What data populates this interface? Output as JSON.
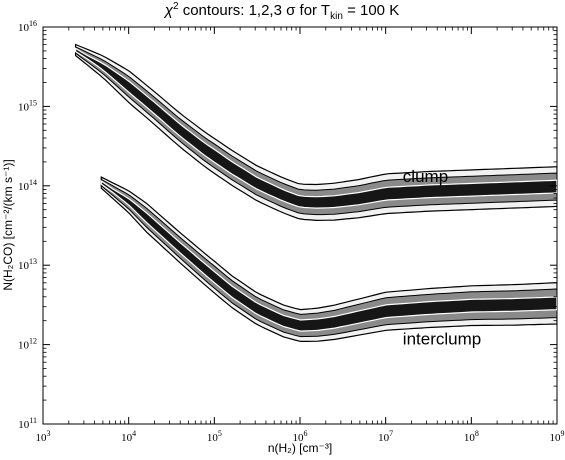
{
  "chart_data": {
    "type": "contour",
    "title_pre": "χ",
    "title_sup": "2",
    "title_mid": " contours: 1,2,3 σ for T",
    "title_sub": "kin",
    "title_post": " = 100 K",
    "xlabel": "n(H₂) [cm⁻³]",
    "ylabel": "N(H₂CO) [cm⁻²/(km s⁻¹)]",
    "x_scale": "log",
    "y_scale": "log",
    "xlim": [
      3,
      9
    ],
    "ylim": [
      11,
      16
    ],
    "x_ticks": [
      {
        "exp": 3,
        "label": "10",
        "sup": "3"
      },
      {
        "exp": 4,
        "label": "10",
        "sup": "4"
      },
      {
        "exp": 5,
        "label": "10",
        "sup": "5"
      },
      {
        "exp": 6,
        "label": "10",
        "sup": "6"
      },
      {
        "exp": 7,
        "label": "10",
        "sup": "7"
      },
      {
        "exp": 8,
        "label": "10",
        "sup": "8"
      },
      {
        "exp": 9,
        "label": "10",
        "sup": "9"
      }
    ],
    "y_ticks": [
      {
        "exp": 11,
        "label": "10",
        "sup": "11"
      },
      {
        "exp": 12,
        "label": "10",
        "sup": "12"
      },
      {
        "exp": 13,
        "label": "10",
        "sup": "13"
      },
      {
        "exp": 14,
        "label": "10",
        "sup": "14"
      },
      {
        "exp": 15,
        "label": "10",
        "sup": "15"
      },
      {
        "exp": 16,
        "label": "10",
        "sup": "16"
      }
    ],
    "annotations": [
      {
        "text": "clump",
        "x": 7.2,
        "y": 14.05
      },
      {
        "text": "interclump",
        "x": 7.2,
        "y": 12.0
      }
    ],
    "series": [
      {
        "id": "clump",
        "ridge": [
          [
            3.38,
            15.71
          ],
          [
            3.7,
            15.5
          ],
          [
            4.0,
            15.25
          ],
          [
            4.3,
            14.98
          ],
          [
            4.6,
            14.7
          ],
          [
            4.9,
            14.45
          ],
          [
            5.2,
            14.23
          ],
          [
            5.5,
            14.03
          ],
          [
            5.8,
            13.88
          ],
          [
            6.0,
            13.8
          ],
          [
            6.2,
            13.79
          ],
          [
            6.4,
            13.8
          ],
          [
            6.7,
            13.84
          ],
          [
            7.0,
            13.9
          ],
          [
            7.5,
            13.93
          ],
          [
            8.0,
            13.95
          ],
          [
            8.5,
            13.97
          ],
          [
            9.0,
            13.99
          ]
        ],
        "halfwidth_3sigma": [
          [
            3.38,
            0.07
          ],
          [
            4.0,
            0.2
          ],
          [
            5.0,
            0.22
          ],
          [
            6.0,
            0.22
          ],
          [
            7.0,
            0.25
          ],
          [
            9.0,
            0.25
          ]
        ],
        "halfwidth_2sigma": [
          [
            3.38,
            0.04
          ],
          [
            4.0,
            0.13
          ],
          [
            5.0,
            0.15
          ],
          [
            6.0,
            0.15
          ],
          [
            7.0,
            0.17
          ],
          [
            9.0,
            0.17
          ]
        ],
        "halfwidth_1sigma": [
          [
            3.5,
            0.02
          ],
          [
            4.0,
            0.07
          ],
          [
            5.0,
            0.08
          ],
          [
            6.0,
            0.07
          ],
          [
            7.0,
            0.08
          ],
          [
            9.0,
            0.08
          ]
        ]
      },
      {
        "id": "interclump",
        "ridge": [
          [
            3.68,
            14.04
          ],
          [
            4.0,
            13.8
          ],
          [
            4.3,
            13.51
          ],
          [
            4.6,
            13.22
          ],
          [
            4.9,
            12.94
          ],
          [
            5.2,
            12.67
          ],
          [
            5.5,
            12.45
          ],
          [
            5.8,
            12.3
          ],
          [
            6.0,
            12.24
          ],
          [
            6.2,
            12.25
          ],
          [
            6.4,
            12.28
          ],
          [
            6.7,
            12.35
          ],
          [
            7.0,
            12.42
          ],
          [
            7.5,
            12.46
          ],
          [
            8.0,
            12.49
          ],
          [
            8.5,
            12.5
          ],
          [
            9.0,
            12.52
          ]
        ],
        "halfwidth_3sigma": [
          [
            3.68,
            0.07
          ],
          [
            4.2,
            0.18
          ],
          [
            5.0,
            0.2
          ],
          [
            6.0,
            0.2
          ],
          [
            7.0,
            0.24
          ],
          [
            9.0,
            0.26
          ]
        ],
        "halfwidth_2sigma": [
          [
            3.68,
            0.04
          ],
          [
            4.2,
            0.12
          ],
          [
            5.0,
            0.14
          ],
          [
            6.0,
            0.14
          ],
          [
            7.0,
            0.17
          ],
          [
            9.0,
            0.18
          ]
        ],
        "halfwidth_1sigma": [
          [
            3.8,
            0.02
          ],
          [
            4.2,
            0.06
          ],
          [
            5.0,
            0.07
          ],
          [
            6.0,
            0.07
          ],
          [
            7.0,
            0.08
          ],
          [
            9.0,
            0.08
          ]
        ]
      }
    ],
    "contour_levels": [
      "1σ",
      "2σ",
      "3σ"
    ],
    "colors": {
      "contour_3sigma": "#000000",
      "contour_2sigma": "#000000",
      "contour_1sigma": "#ffffff",
      "fill_outer": "#f2f2f2",
      "fill_mid": "#8a8a8a",
      "fill_inner": "#161616"
    }
  }
}
